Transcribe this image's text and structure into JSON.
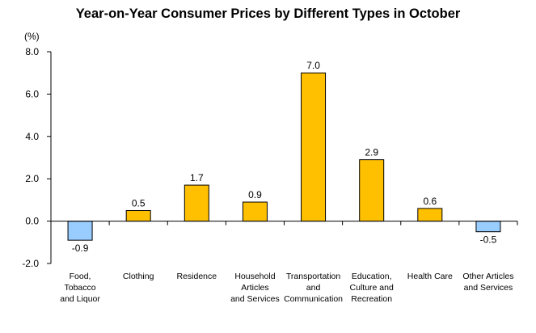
{
  "chart_data": {
    "type": "bar",
    "title": "Year-on-Year Consumer Prices by Different Types in October",
    "ylabel": "(%)",
    "ylim": [
      -2.0,
      8.0
    ],
    "y_ticks": [
      "-2.0",
      "0.0",
      "2.0",
      "4.0",
      "6.0",
      "8.0"
    ],
    "y_tick_values": [
      -2,
      0,
      2,
      4,
      6,
      8
    ],
    "grid": false,
    "categories": [
      [
        "Food,",
        "Tobacco",
        "and Liquor"
      ],
      [
        "Clothing"
      ],
      [
        "Residence"
      ],
      [
        "Household",
        "Articles",
        "and Services"
      ],
      [
        "Transportation",
        "and",
        "Communication"
      ],
      [
        "Education,",
        "Culture and",
        "Recreation"
      ],
      [
        "Health Care"
      ],
      [
        "Other Articles",
        "and Services"
      ]
    ],
    "values": [
      -0.9,
      0.5,
      1.7,
      0.9,
      7.0,
      2.9,
      0.6,
      -0.5
    ],
    "value_labels": [
      "-0.9",
      "0.5",
      "1.7",
      "0.9",
      "7.0",
      "2.9",
      "0.6",
      "-0.5"
    ],
    "colors": {
      "positive": "#FFC000",
      "negative": "#99CCFF",
      "stroke": "#000000"
    }
  }
}
